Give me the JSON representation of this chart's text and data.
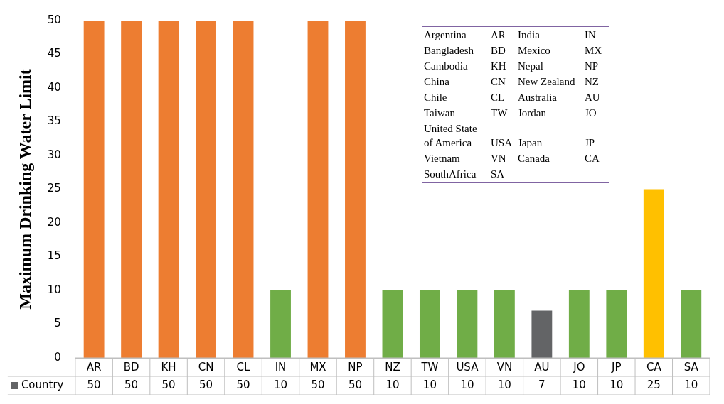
{
  "chart_data": {
    "type": "bar",
    "ylabel": "Maximum Drinking Water Limit",
    "categories": [
      "AR",
      "BD",
      "KH",
      "CN",
      "CL",
      "IN",
      "MX",
      "NP",
      "NZ",
      "TW",
      "USA",
      "VN",
      "AU",
      "JO",
      "JP",
      "CA",
      "SA"
    ],
    "series": [
      {
        "name": "Country",
        "color": "#636466",
        "colors": [
          "#ed7d31",
          "#ed7d31",
          "#ed7d31",
          "#ed7d31",
          "#ed7d31",
          "#70ad47",
          "#ed7d31",
          "#ed7d31",
          "#70ad47",
          "#70ad47",
          "#70ad47",
          "#70ad47",
          "#636466",
          "#70ad47",
          "#70ad47",
          "#ffc000",
          "#70ad47"
        ],
        "values": [
          50,
          50,
          50,
          50,
          50,
          10,
          50,
          50,
          10,
          10,
          10,
          10,
          7,
          10,
          10,
          25,
          10
        ]
      }
    ],
    "ylim": [
      0,
      50
    ],
    "yticks": [
      0,
      5,
      10,
      15,
      20,
      25,
      30,
      35,
      40,
      45,
      50
    ],
    "grid": false,
    "legend": "bottom left",
    "data_labels": true,
    "annotations": [
      "Argentina",
      "AR",
      "India",
      "IN",
      "Bangladesh",
      "BD",
      "Mexico",
      "MX",
      "Cambodia",
      "KH",
      "Nepal",
      "NP",
      "China",
      "CN",
      "New Zealand",
      "NZ",
      "Chile",
      "CL",
      "Australia",
      "AU",
      "Taiwan",
      "TW",
      "Jordan",
      "JO",
      "United State of America",
      "USA",
      "Japan",
      "JP",
      "Vietnam",
      "VN",
      "Canada",
      "CA",
      "SouthAfrica",
      "SA"
    ]
  }
}
